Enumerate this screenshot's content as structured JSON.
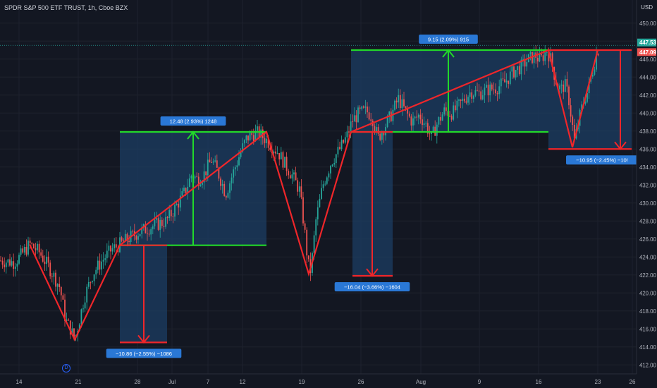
{
  "header": {
    "title": "SPDR S&P 500 ETF TRUST, 1h, Cboe BZX",
    "currency": "USD",
    "dividend_marker": "D"
  },
  "colors": {
    "background": "#131722",
    "up": "#26a69a",
    "down": "#ef5350",
    "target_green": "#22d82a",
    "stop_red": "#f0262a",
    "box_fill": "#1c3d63",
    "label_blue": "#2a78d6",
    "axis_text": "#b2b5be"
  },
  "chart_data": {
    "type": "candlestick",
    "symbol": "SPY",
    "timeframe": "1h",
    "y_axis": {
      "min": 411,
      "max": 451,
      "ticks": [
        412,
        414,
        416,
        418,
        420,
        422,
        424,
        426,
        428,
        430,
        432,
        434,
        436,
        438,
        440,
        442,
        444,
        446,
        448,
        450
      ],
      "tick_labels": [
        "412.00",
        "414.00",
        "416.00",
        "418.00",
        "420.00",
        "422.00",
        "424.00",
        "426.00",
        "428.00",
        "430.00",
        "432.00",
        "434.00",
        "436.00",
        "438.00",
        "440.00",
        "442.00",
        "444.00",
        "446.00",
        "448.00",
        "450.00"
      ]
    },
    "x_axis": {
      "min": 0,
      "max": 932,
      "ticks": [
        {
          "label": "14",
          "x": 27
        },
        {
          "label": "21",
          "x": 111
        },
        {
          "label": "28",
          "x": 195
        },
        {
          "label": "Jul",
          "x": 244
        },
        {
          "label": "7",
          "x": 295
        },
        {
          "label": "12",
          "x": 344
        },
        {
          "label": "19",
          "x": 428
        },
        {
          "label": "26",
          "x": 512
        },
        {
          "label": "Aug",
          "x": 597
        },
        {
          "label": "9",
          "x": 680
        },
        {
          "label": "16",
          "x": 764
        },
        {
          "label": "23",
          "x": 848
        },
        {
          "label": "26",
          "x": 897
        }
      ]
    },
    "price_path": [
      [
        0,
        423.6
      ],
      [
        20,
        423.4
      ],
      [
        30,
        424.2
      ],
      [
        42,
        425.4
      ],
      [
        55,
        424.6
      ],
      [
        70,
        422.8
      ],
      [
        85,
        420.6
      ],
      [
        93,
        417.0
      ],
      [
        100,
        416.0
      ],
      [
        106,
        414.8
      ],
      [
        112,
        416.8
      ],
      [
        120,
        419.6
      ],
      [
        132,
        422.2
      ],
      [
        145,
        423.6
      ],
      [
        158,
        424.8
      ],
      [
        172,
        425.5
      ],
      [
        185,
        426.2
      ],
      [
        198,
        426.8
      ],
      [
        210,
        427.2
      ],
      [
        222,
        427.6
      ],
      [
        236,
        428.0
      ],
      [
        248,
        429.4
      ],
      [
        262,
        431.2
      ],
      [
        272,
        433.2
      ],
      [
        280,
        432.6
      ],
      [
        288,
        433.0
      ],
      [
        300,
        434.8
      ],
      [
        308,
        433.6
      ],
      [
        315,
        432.2
      ],
      [
        320,
        431.0
      ],
      [
        330,
        433.2
      ],
      [
        342,
        435.8
      ],
      [
        350,
        437.2
      ],
      [
        358,
        437.6
      ],
      [
        366,
        437.8
      ],
      [
        372,
        437.4
      ],
      [
        378,
        437.0
      ],
      [
        385,
        436.4
      ],
      [
        395,
        435.6
      ],
      [
        405,
        434.2
      ],
      [
        415,
        433.0
      ],
      [
        425,
        431.4
      ],
      [
        432,
        427.0
      ],
      [
        437,
        423.2
      ],
      [
        441,
        422.4
      ],
      [
        448,
        428.0
      ],
      [
        458,
        432.0
      ],
      [
        470,
        434.6
      ],
      [
        482,
        436.0
      ],
      [
        492,
        437.4
      ],
      [
        500,
        439.2
      ],
      [
        510,
        440.0
      ],
      [
        520,
        440.2
      ],
      [
        528,
        439.6
      ],
      [
        536,
        437.2
      ],
      [
        545,
        438.4
      ],
      [
        555,
        439.8
      ],
      [
        565,
        441.6
      ],
      [
        575,
        440.2
      ],
      [
        585,
        439.0
      ],
      [
        595,
        439.8
      ],
      [
        605,
        438.6
      ],
      [
        612,
        437.2
      ],
      [
        620,
        438.8
      ],
      [
        630,
        440.2
      ],
      [
        642,
        440.0
      ],
      [
        655,
        441.2
      ],
      [
        668,
        442.4
      ],
      [
        680,
        442.2
      ],
      [
        692,
        442.6
      ],
      [
        704,
        442.8
      ],
      [
        716,
        443.4
      ],
      [
        728,
        444.6
      ],
      [
        740,
        445.2
      ],
      [
        750,
        446.0
      ],
      [
        760,
        446.4
      ],
      [
        766,
        445.8
      ],
      [
        771,
        446.4
      ],
      [
        776,
        447.0
      ],
      [
        781,
        446.0
      ],
      [
        786,
        444.4
      ],
      [
        791,
        443.0
      ],
      [
        796,
        442.6
      ],
      [
        801,
        443.2
      ],
      [
        806,
        442.0
      ],
      [
        811,
        439.2
      ],
      [
        815,
        436.8
      ],
      [
        819,
        438.4
      ],
      [
        824,
        440.2
      ],
      [
        829,
        441.6
      ],
      [
        834,
        442.4
      ],
      [
        839,
        444.2
      ],
      [
        844,
        445.8
      ],
      [
        848,
        447.2
      ],
      [
        851,
        446.4
      ]
    ],
    "current_price": 447.09,
    "last_price": 447.53,
    "price_labels": [
      {
        "label": "447.53",
        "value": 447.53,
        "color": "#26a69a"
      },
      {
        "label": "447.09",
        "value": 447.09,
        "color": "#ef5350"
      }
    ],
    "zigzag": [
      [
        42,
        425.4
      ],
      [
        106,
        414.8
      ],
      [
        170,
        425.3
      ],
      [
        378,
        437.9
      ],
      [
        438,
        422.1
      ],
      [
        498,
        437.9
      ],
      [
        778,
        447.0
      ],
      [
        812,
        436.2
      ],
      [
        848,
        447.0
      ]
    ],
    "measurements": [
      {
        "kind": "target",
        "x1": 170,
        "x2": 378,
        "y_base": 425.3,
        "y_end": 437.9,
        "arrow_x": 274,
        "label": "12.48 (2.93%) 1248"
      },
      {
        "kind": "target",
        "x1": 498,
        "x2": 778,
        "y_base": 437.9,
        "y_end": 447.0,
        "arrow_x": 636,
        "label": "9.15 (2.09%) 915"
      },
      {
        "kind": "stop",
        "x1": 170,
        "x2": 237,
        "y_base": 425.3,
        "y_end": 414.5,
        "arrow_x": 204,
        "label": "−10.86 (−2.55%) −1086"
      },
      {
        "kind": "stop",
        "x1": 500,
        "x2": 557,
        "y_base": 437.9,
        "y_end": 421.9,
        "arrow_x": 528,
        "label": "−16.04 (−3.66%) −1604"
      },
      {
        "kind": "stop",
        "x1": 778,
        "x2": 896,
        "y_base": 447.0,
        "y_end": 436.0,
        "arrow_x": 880,
        "label": "−10.95 (−2.45%) −10!"
      }
    ]
  }
}
